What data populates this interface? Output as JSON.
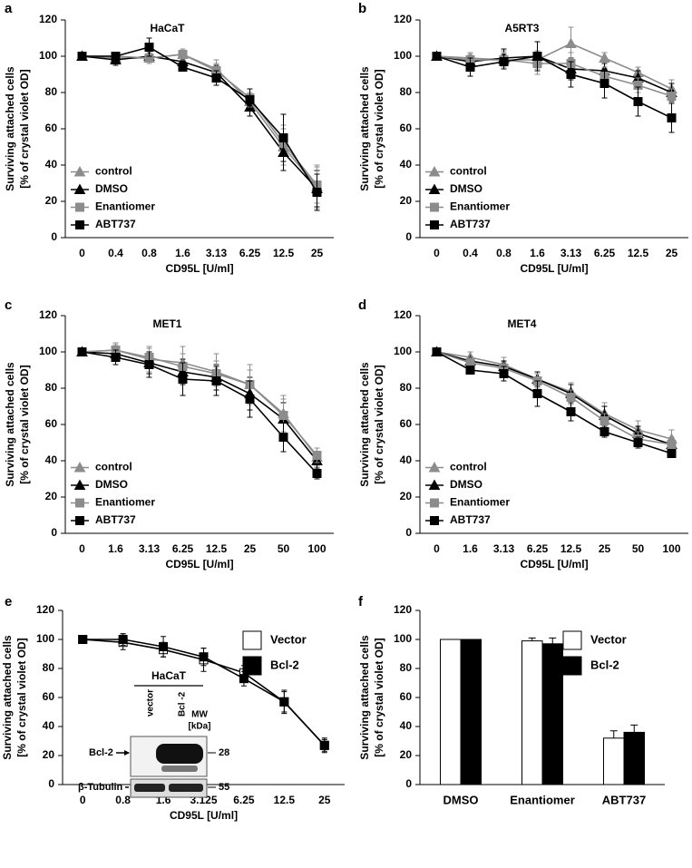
{
  "chart_data": [
    {
      "type": "line",
      "panel_label": "a",
      "title": "HaCaT",
      "ylabel": [
        "Surviving attached cells",
        "[% of crystal violet OD]"
      ],
      "xlabel": "CD95L [U/ml]",
      "categories": [
        "0",
        "0.4",
        "0.8",
        "1.6",
        "3.13",
        "6.25",
        "12.5",
        "25"
      ],
      "ylim": [
        0,
        120
      ],
      "yticks": [
        0,
        20,
        40,
        60,
        80,
        100,
        120
      ],
      "legend": "lower left",
      "series": [
        {
          "name": "control",
          "color": "#8c8c8c",
          "marker": "triangle",
          "values": [
            100,
            99,
            99,
            101,
            93,
            75,
            50,
            28
          ],
          "errors": [
            1,
            2,
            3,
            3,
            5,
            5,
            10,
            12
          ]
        },
        {
          "name": "DMSO",
          "color": "#000000",
          "marker": "triangle",
          "values": [
            100,
            98,
            100,
            97,
            91,
            72,
            47,
            27
          ],
          "errors": [
            1,
            3,
            3,
            3,
            4,
            5,
            10,
            10
          ]
        },
        {
          "name": "Enantiomer",
          "color": "#8c8c8c",
          "marker": "square",
          "values": [
            100,
            100,
            99,
            101,
            92,
            77,
            52,
            29
          ],
          "errors": [
            1,
            2,
            3,
            3,
            4,
            5,
            10,
            10
          ]
        },
        {
          "name": "ABT737",
          "color": "#000000",
          "marker": "square",
          "values": [
            100,
            100,
            105,
            94,
            88,
            76,
            55,
            25
          ],
          "errors": [
            1,
            2,
            5,
            2,
            4,
            6,
            13,
            10
          ]
        }
      ]
    },
    {
      "type": "line",
      "panel_label": "b",
      "title": "A5RT3",
      "ylabel": [
        "Surviving attached cells",
        "[% of crystal violet OD]"
      ],
      "xlabel": "CD95L [U/ml]",
      "categories": [
        "0",
        "0.4",
        "0.8",
        "1.6",
        "3.13",
        "6.25",
        "12.5",
        "25"
      ],
      "ylim": [
        0,
        120
      ],
      "yticks": [
        0,
        20,
        40,
        60,
        80,
        100,
        120
      ],
      "legend": "lower left",
      "series": [
        {
          "name": "control",
          "color": "#8c8c8c",
          "marker": "triangle",
          "values": [
            100,
            99,
            98,
            98,
            107,
            99,
            91,
            82
          ],
          "errors": [
            1,
            3,
            5,
            5,
            9,
            3,
            3,
            5
          ]
        },
        {
          "name": "DMSO",
          "color": "#000000",
          "marker": "triangle",
          "values": [
            100,
            97,
            99,
            100,
            93,
            92,
            88,
            80
          ],
          "errors": [
            1,
            3,
            5,
            8,
            6,
            4,
            4,
            5
          ]
        },
        {
          "name": "Enantiomer",
          "color": "#8c8c8c",
          "marker": "square",
          "values": [
            100,
            98,
            98,
            96,
            96,
            89,
            84,
            78
          ],
          "errors": [
            1,
            3,
            4,
            6,
            6,
            5,
            4,
            4
          ]
        },
        {
          "name": "ABT737",
          "color": "#000000",
          "marker": "square",
          "values": [
            100,
            94,
            97,
            100,
            90,
            85,
            75,
            66
          ],
          "errors": [
            1,
            5,
            4,
            8,
            7,
            8,
            8,
            8
          ]
        }
      ]
    },
    {
      "type": "line",
      "panel_label": "c",
      "title": "MET1",
      "ylabel": [
        "Surviving attached cells",
        "[% of crystal violet OD]"
      ],
      "xlabel": "CD95L [U/ml]",
      "categories": [
        "0",
        "1.6",
        "3.13",
        "6.25",
        "12.5",
        "25",
        "50",
        "100"
      ],
      "ylim": [
        0,
        120
      ],
      "yticks": [
        0,
        20,
        40,
        60,
        80,
        100,
        120
      ],
      "legend": "lower left",
      "series": [
        {
          "name": "control",
          "color": "#8c8c8c",
          "marker": "triangle",
          "values": [
            100,
            101,
            96,
            94,
            89,
            82,
            66,
            42
          ],
          "errors": [
            1,
            3,
            7,
            9,
            10,
            11,
            10,
            5
          ]
        },
        {
          "name": "DMSO",
          "color": "#000000",
          "marker": "triangle",
          "values": [
            100,
            99,
            94,
            89,
            86,
            77,
            63,
            40
          ],
          "errors": [
            1,
            4,
            6,
            7,
            7,
            9,
            9,
            4
          ]
        },
        {
          "name": "Enantiomer",
          "color": "#8c8c8c",
          "marker": "square",
          "values": [
            100,
            101,
            97,
            92,
            88,
            82,
            65,
            43
          ],
          "errors": [
            1,
            4,
            5,
            7,
            7,
            8,
            9,
            4
          ]
        },
        {
          "name": "ABT737",
          "color": "#000000",
          "marker": "square",
          "values": [
            100,
            97,
            93,
            85,
            84,
            74,
            53,
            33
          ],
          "errors": [
            1,
            4,
            7,
            9,
            8,
            10,
            8,
            3
          ]
        }
      ]
    },
    {
      "type": "line",
      "panel_label": "d",
      "title": "MET4",
      "ylabel": [
        "Surviving attached cells",
        "[% of crystal violet OD]"
      ],
      "xlabel": "CD95L [U/ml]",
      "categories": [
        "0",
        "1.6",
        "3.13",
        "6.25",
        "12.5",
        "25",
        "50",
        "100"
      ],
      "ylim": [
        0,
        120
      ],
      "yticks": [
        0,
        20,
        40,
        60,
        80,
        100,
        120
      ],
      "legend": "lower left",
      "series": [
        {
          "name": "control",
          "color": "#8c8c8c",
          "marker": "triangle",
          "values": [
            100,
            97,
            93,
            85,
            78,
            66,
            57,
            52
          ],
          "errors": [
            1,
            3,
            4,
            4,
            5,
            6,
            5,
            5
          ]
        },
        {
          "name": "DMSO",
          "color": "#000000",
          "marker": "triangle",
          "values": [
            100,
            95,
            92,
            85,
            77,
            65,
            55,
            49
          ],
          "errors": [
            1,
            2,
            3,
            4,
            5,
            5,
            4,
            4
          ]
        },
        {
          "name": "Enantiomer",
          "color": "#8c8c8c",
          "marker": "square",
          "values": [
            100,
            94,
            91,
            84,
            75,
            62,
            52,
            49
          ],
          "errors": [
            1,
            3,
            3,
            4,
            4,
            4,
            4,
            4
          ]
        },
        {
          "name": "ABT737",
          "color": "#000000",
          "marker": "square",
          "values": [
            100,
            90,
            88,
            77,
            67,
            56,
            50,
            44
          ],
          "errors": [
            1,
            2,
            4,
            7,
            5,
            3,
            3,
            2
          ]
        }
      ]
    },
    {
      "type": "line",
      "panel_label": "e",
      "ylabel": [
        "Surviving attached cells",
        "[% of crystal violet OD]"
      ],
      "xlabel": "CD95L [U/ml]",
      "categories": [
        "0",
        "0.8",
        "1.6",
        "3.125",
        "6.25",
        "12.5",
        "25"
      ],
      "ylim": [
        0,
        120
      ],
      "yticks": [
        0,
        20,
        40,
        60,
        80,
        100,
        120
      ],
      "legend": "upper right",
      "series": [
        {
          "name": "Vector",
          "color": "#ffffff",
          "marker": "square",
          "values": [
            100,
            98,
            93,
            86,
            77,
            57,
            27
          ],
          "errors": [
            2,
            5,
            5,
            8,
            5,
            8,
            5
          ]
        },
        {
          "name": "Bcl-2",
          "color": "#000000",
          "marker": "square",
          "values": [
            100,
            100,
            95,
            88,
            73,
            57,
            27
          ],
          "errors": [
            2,
            4,
            7,
            6,
            5,
            7,
            4
          ]
        }
      ],
      "inset": {
        "title": "HaCaT",
        "lanes": [
          "vector",
          "Bcl -2"
        ],
        "mw_label": [
          "MW",
          "[kDa]"
        ],
        "bands": [
          {
            "name": "Bcl-2",
            "mw": 28
          },
          {
            "name": "β-Tubulin",
            "mw": 55
          }
        ]
      }
    },
    {
      "type": "bar",
      "panel_label": "f",
      "ylabel": [
        "Surviving attached cells",
        "[% of crystal violet OD]"
      ],
      "categories": [
        "DMSO",
        "Enantiomer",
        "ABT737"
      ],
      "ylim": [
        0,
        120
      ],
      "yticks": [
        0,
        20,
        40,
        60,
        80,
        100,
        120
      ],
      "legend": "upper right",
      "series": [
        {
          "name": "Vector",
          "color": "#ffffff",
          "values": [
            100,
            99,
            32
          ],
          "errors": [
            0,
            2,
            5
          ]
        },
        {
          "name": "Bcl-2",
          "color": "#000000",
          "values": [
            100,
            97,
            36
          ],
          "errors": [
            0,
            4,
            5
          ]
        }
      ]
    }
  ]
}
